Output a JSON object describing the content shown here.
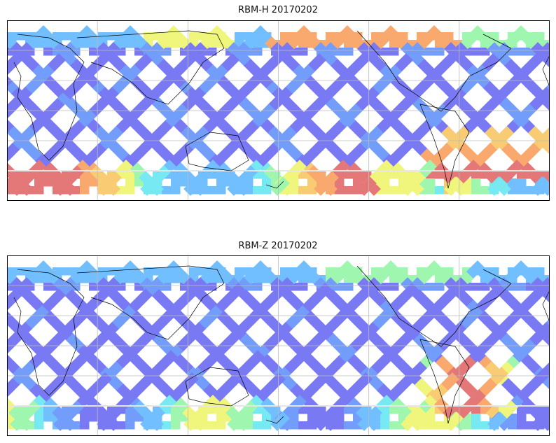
{
  "chart_data": [
    {
      "type": "heatmap",
      "title": "RBM-H 20170202",
      "projection": "equirectangular",
      "grid": true,
      "lon_gridlines": [
        0,
        60,
        120,
        180,
        240,
        300,
        360
      ],
      "lat_gridlines": [
        -60,
        -30,
        0,
        30,
        60
      ],
      "data_lat_range": [
        -70,
        70
      ],
      "legend": "none",
      "colormap": "jet"
    },
    {
      "type": "heatmap",
      "title": "RBM-Z 20170202",
      "projection": "equirectangular",
      "grid": true,
      "lon_gridlines": [
        0,
        60,
        120,
        180,
        240,
        300,
        360
      ],
      "lat_gridlines": [
        -60,
        -30,
        0,
        30,
        60
      ],
      "data_lat_range": [
        -70,
        70
      ],
      "legend": "none",
      "colormap": "jet"
    }
  ]
}
